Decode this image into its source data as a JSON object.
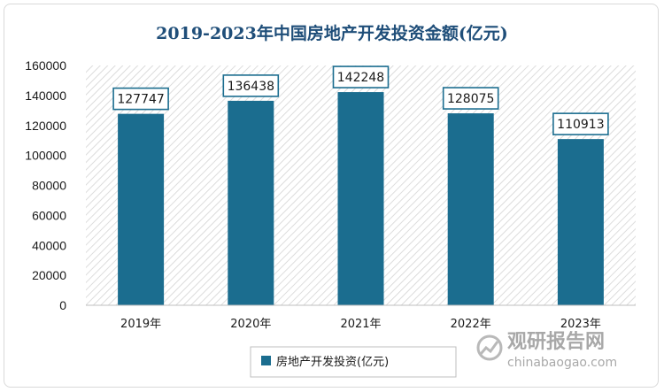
{
  "chart_data": {
    "type": "bar",
    "title": "2019-2023年中国房地产开发投资金额(亿元)",
    "categories": [
      "2019年",
      "2020年",
      "2021年",
      "2022年",
      "2023年"
    ],
    "series": [
      {
        "name": "房地产开发投资(亿元)",
        "values": [
          127747,
          136438,
          142248,
          128075,
          110913
        ]
      }
    ],
    "ylim": [
      0,
      160000
    ],
    "yticks": [
      "0",
      "20000",
      "40000",
      "60000",
      "80000",
      "100000",
      "120000",
      "140000",
      "160000"
    ],
    "xlabel": "",
    "ylabel": "",
    "grid": false,
    "legend_position": "bottom",
    "colors": {
      "bar": "#1b6d8f",
      "title": "#1f4e79",
      "label_border": "#1b6d8f"
    }
  },
  "watermark": {
    "brand": "观研报告网",
    "site": "chinabaogao.com"
  }
}
